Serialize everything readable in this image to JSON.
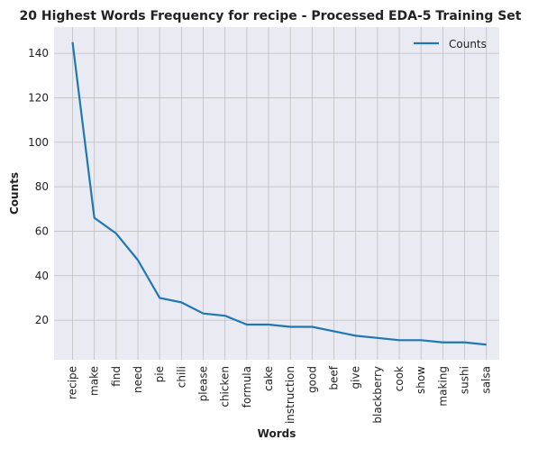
{
  "chart_data": {
    "type": "line",
    "title": "20 Highest Words Frequency for recipe - Processed EDA-5 Training Set",
    "xlabel": "Words",
    "ylabel": "Counts",
    "categories": [
      "recipe",
      "make",
      "find",
      "need",
      "pie",
      "chili",
      "please",
      "chicken",
      "formula",
      "cake",
      "instruction",
      "good",
      "beef",
      "give",
      "blackberry",
      "cook",
      "show",
      "making",
      "sushi",
      "salsa"
    ],
    "series": [
      {
        "name": "Counts",
        "values": [
          145,
          66,
          59,
          47,
          30,
          28,
          23,
          22,
          18,
          18,
          17,
          17,
          15,
          13,
          12,
          11,
          11,
          10,
          10,
          9
        ]
      }
    ],
    "ylim": [
      2.2,
      151.8
    ],
    "yticks": [
      20,
      40,
      60,
      80,
      100,
      120,
      140
    ],
    "grid": true,
    "legend_position": "top-right",
    "colors": {
      "line": "#1f77b4",
      "plot_bg": "#eaeaf2",
      "grid": "#bfbfbf"
    }
  }
}
